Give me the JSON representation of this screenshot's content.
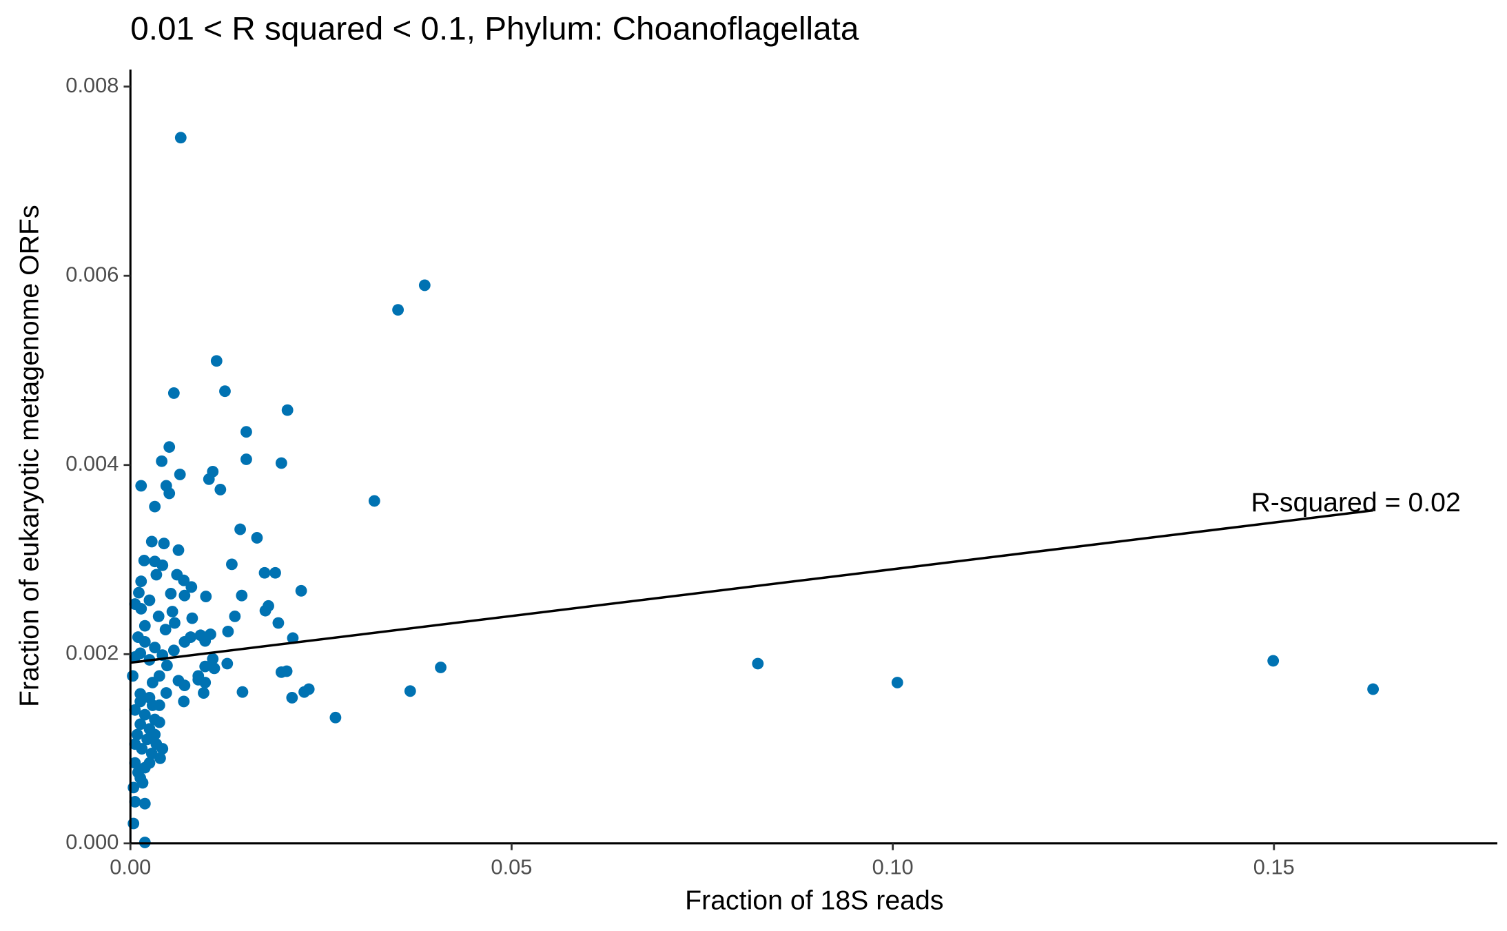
{
  "chart_data": {
    "type": "scatter",
    "title": "0.01 < R squared < 0.1, Phylum:  Choanoflagellata",
    "x_label": "Fraction of 18S reads",
    "y_label": "Fraction of eukaryotic metagenome ORFs",
    "annotation": "R-squared =  0.02",
    "color": "#0072B2",
    "xlim": [
      0,
      0.1793
    ],
    "ylim": [
      0,
      0.00818
    ],
    "xticks": [
      {
        "value": 0,
        "label": "0.00"
      },
      {
        "value": 0.05,
        "label": "0.05"
      },
      {
        "value": 0.1,
        "label": "0.10"
      },
      {
        "value": 0.15,
        "label": "0.15"
      }
    ],
    "yticks": [
      {
        "value": 0,
        "label": "0.000"
      },
      {
        "value": 0.002,
        "label": "0.002"
      },
      {
        "value": 0.004,
        "label": "0.004"
      },
      {
        "value": 0.006,
        "label": "0.006"
      },
      {
        "value": 0.008,
        "label": "0.008"
      }
    ],
    "fit": {
      "x": [
        0,
        0.163
      ],
      "y": [
        0.00191,
        0.00352
      ]
    },
    "x": [
      0.0066,
      0.0386,
      0.0351,
      0.0113,
      0.0057,
      0.0124,
      0.0206,
      0.0152,
      0.0051,
      0.0152,
      0.0198,
      0.0041,
      0.0108,
      0.0065,
      0.0103,
      0.0014,
      0.0047,
      0.0118,
      0.0051,
      0.032,
      0.0032,
      0.0144,
      0.0166,
      0.0028,
      0.0044,
      0.0063,
      0.0018,
      0.0032,
      0.0042,
      0.0133,
      0.0176,
      0.019,
      0.0034,
      0.0061,
      0.007,
      0.0014,
      0.008,
      0.0224,
      0.0011,
      0.0053,
      0.0071,
      0.0099,
      0.0146,
      0.0025,
      0.0006,
      0.0181,
      0.0177,
      0.0014,
      0.0055,
      0.0137,
      0.0037,
      0.0081,
      0.0194,
      0.0058,
      0.0019,
      0.0128,
      0.0046,
      0.0092,
      0.0105,
      0.0079,
      0.0213,
      0.0071,
      0.0098,
      0.0019,
      0.0032,
      0.0057,
      0.0013,
      0.0042,
      0.0108,
      0.0127,
      0.0025,
      0.0823,
      0.0098,
      0.011,
      0.0205,
      0.0198,
      0.0407,
      0.1499,
      0.0048,
      0.0089,
      0.0038,
      0.1006,
      0.163,
      0.0063,
      0.0098,
      0.0029,
      0.0071,
      0.0089,
      0.0234,
      0.0228,
      0.0367,
      0.0147,
      0.0047,
      0.0096,
      0.0212,
      0.007,
      0.0013,
      0.0025,
      0.0269,
      0.0006,
      0.0019,
      0.0032,
      0.0013,
      0.0025,
      0.0038,
      0.0009,
      0.0022,
      0.0034,
      0.0015,
      0.0028,
      0.0039,
      0.0006,
      0.0019,
      0.0013,
      0.0004,
      0.0019,
      0.0006,
      0.0004,
      0.0019,
      0.001,
      0.0025,
      0.0032,
      0.0042,
      0.0013,
      0.0029,
      0.0006,
      0.0016,
      0.0038,
      0.0003,
      0.0006,
      0.001
    ],
    "y": [
      0.00746,
      0.0059,
      0.00564,
      0.0051,
      0.00476,
      0.00478,
      0.00458,
      0.00435,
      0.00419,
      0.00406,
      0.00402,
      0.00404,
      0.00393,
      0.0039,
      0.00385,
      0.00378,
      0.00378,
      0.00374,
      0.0037,
      0.00362,
      0.00356,
      0.00332,
      0.00323,
      0.00319,
      0.00317,
      0.0031,
      0.00299,
      0.00298,
      0.00294,
      0.00295,
      0.00286,
      0.00286,
      0.00284,
      0.00284,
      0.00278,
      0.00277,
      0.00271,
      0.00267,
      0.00265,
      0.00264,
      0.00262,
      0.00261,
      0.00262,
      0.00257,
      0.00253,
      0.00251,
      0.00246,
      0.00248,
      0.00245,
      0.0024,
      0.0024,
      0.00238,
      0.00233,
      0.00233,
      0.0023,
      0.00224,
      0.00226,
      0.0022,
      0.00221,
      0.00218,
      0.00217,
      0.00213,
      0.00214,
      0.00213,
      0.00207,
      0.00204,
      0.00201,
      0.00199,
      0.00195,
      0.0019,
      0.00194,
      0.0019,
      0.00187,
      0.00185,
      0.00182,
      0.00181,
      0.00186,
      0.00193,
      0.00188,
      0.00177,
      0.00177,
      0.0017,
      0.00163,
      0.00172,
      0.0017,
      0.0017,
      0.00167,
      0.00173,
      0.00163,
      0.0016,
      0.00161,
      0.0016,
      0.00159,
      0.00159,
      0.00154,
      0.0015,
      0.00158,
      0.00154,
      0.00133,
      0.00141,
      0.00136,
      0.00131,
      0.00126,
      0.00121,
      0.00128,
      0.00115,
      0.0011,
      0.00105,
      0.001,
      0.00095,
      0.0009,
      0.00085,
      0.0008,
      0.00069,
      0.00059,
      0.00042,
      0.00044,
      0.00021,
      1e-05,
      0.00075,
      0.00085,
      0.00115,
      0.001,
      0.0015,
      0.00146,
      0.00105,
      0.00064,
      0.00146,
      0.00177,
      0.00197,
      0.00218
    ]
  }
}
